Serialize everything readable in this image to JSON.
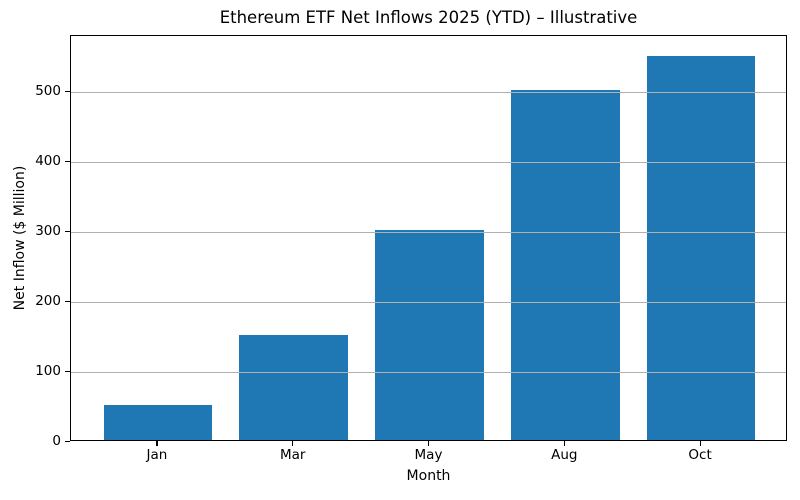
{
  "chart_data": {
    "type": "bar",
    "title": "Ethereum ETF Net Inflows 2025 (YTD) – Illustrative",
    "xlabel": "Month",
    "ylabel": "Net Inflow ($ Million)",
    "categories": [
      "Jan",
      "Mar",
      "May",
      "Aug",
      "Oct"
    ],
    "values": [
      50,
      150,
      300,
      500,
      548
    ],
    "yticks": [
      0,
      100,
      200,
      300,
      400,
      500
    ],
    "ylim": [
      0,
      580
    ],
    "bar_color": "#1f77b4",
    "grid": true,
    "grid_color": "#b0b0b0",
    "grid_over_bars": true,
    "legend": null,
    "background_color": "#ffffff",
    "spine_color": "#000000",
    "text_color": "#000000"
  }
}
